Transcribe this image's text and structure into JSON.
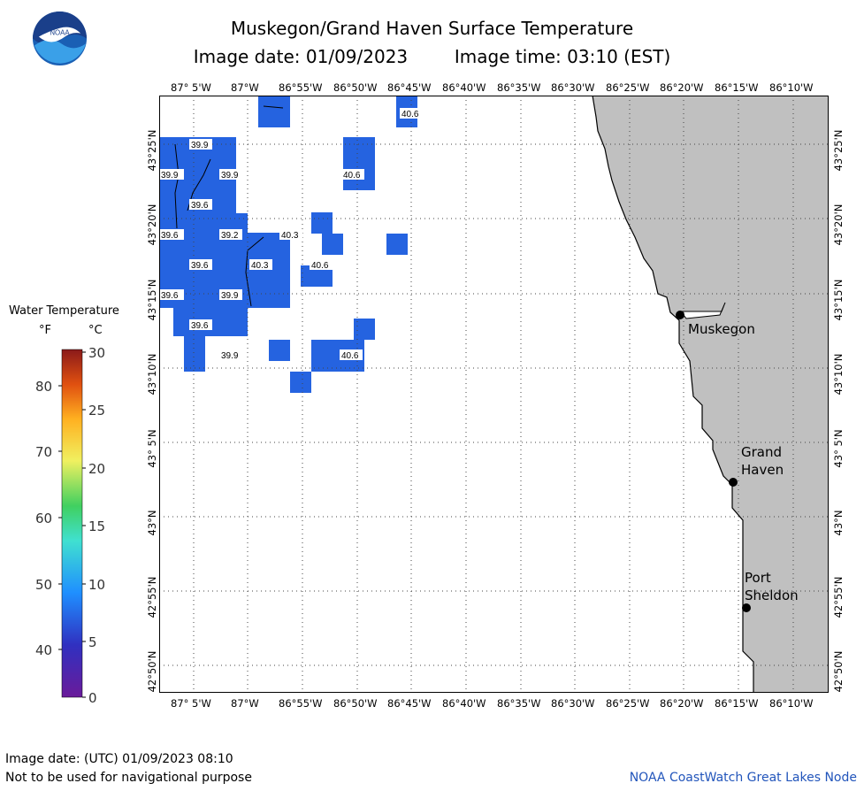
{
  "header": {
    "title": "Muskegon/Grand Haven Surface Temperature",
    "image_date_label": "Image date: 01/09/2023",
    "image_time_label": "Image time: 03:10 (EST)",
    "logo_text": "NOAA"
  },
  "axes": {
    "longitude_ticks": [
      "87° 5'W",
      "87°W",
      "86°55'W",
      "86°50'W",
      "86°45'W",
      "86°40'W",
      "86°35'W",
      "86°30'W",
      "86°25'W",
      "86°20'W",
      "86°15'W",
      "86°10'W"
    ],
    "latitude_ticks": [
      "43°25'N",
      "43°20'N",
      "43°15'N",
      "43°10'N",
      "43° 5'N",
      "43°N",
      "42°55'N",
      "42°50'N"
    ]
  },
  "legend": {
    "title": "Water Temperature",
    "unit_f": "°F",
    "unit_c": "°C",
    "f_ticks": [
      "80",
      "70",
      "60",
      "50",
      "40"
    ],
    "c_ticks": [
      "30",
      "25",
      "20",
      "15",
      "10",
      "5",
      "0"
    ]
  },
  "cities": [
    {
      "name": "Muskegon"
    },
    {
      "name": "Grand Haven"
    },
    {
      "name": "Port Sheldon"
    }
  ],
  "temperature_labels": [
    "40.6",
    "39.9",
    "39.9",
    "39.9",
    "40.6",
    "39.6",
    "39.6",
    "39.2",
    "40.3",
    "39.6",
    "40.3",
    "40.6",
    "39.6",
    "39.9",
    "39.6",
    "39.9",
    "40.6"
  ],
  "colors": {
    "water_cell": "#2563e0",
    "land": "#c0c0c0",
    "grid": "#555555",
    "footer_right": "#2255bb"
  },
  "footer": {
    "utc_label": "Image date: (UTC) 01/09/2023  08:10",
    "disclaimer": "Not to be used for navigational purpose",
    "credit": "NOAA CoastWatch Great Lakes Node"
  }
}
